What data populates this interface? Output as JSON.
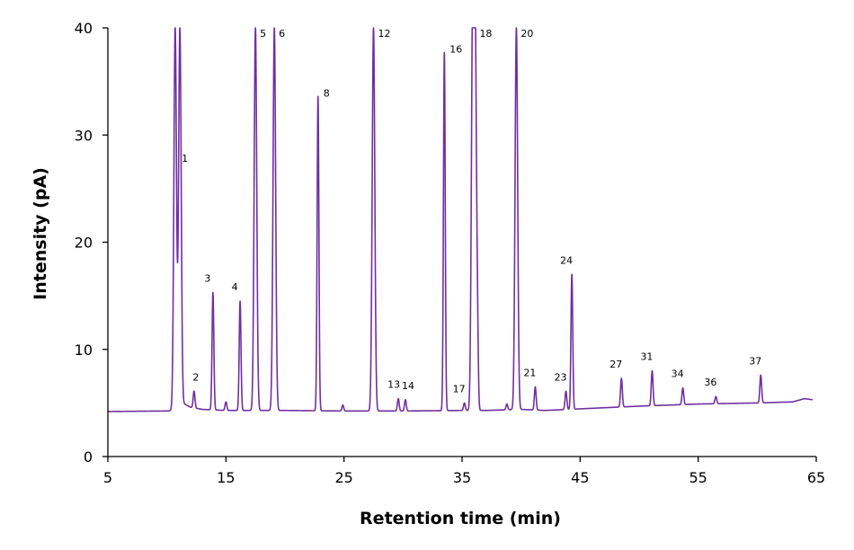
{
  "chart_data": {
    "type": "line",
    "xlabel": "Retention time (min)",
    "ylabel": "Intensity (pA)",
    "xlim": [
      5,
      65
    ],
    "ylim": [
      0,
      40
    ],
    "xticks": [
      5,
      15,
      25,
      35,
      45,
      55,
      65
    ],
    "yticks": [
      0,
      10,
      20,
      30,
      40
    ],
    "grid": false,
    "line_color": "#7030a0",
    "baseline": [
      [
        5,
        4.2
      ],
      [
        10,
        4.25
      ],
      [
        10.6,
        4.3
      ],
      [
        11.5,
        4.9
      ],
      [
        12,
        4.6
      ],
      [
        13,
        4.4
      ],
      [
        15,
        4.3
      ],
      [
        20,
        4.3
      ],
      [
        25,
        4.25
      ],
      [
        30,
        4.25
      ],
      [
        35,
        4.3
      ],
      [
        37,
        4.3
      ],
      [
        40,
        4.4
      ],
      [
        42,
        4.3
      ],
      [
        44,
        4.4
      ],
      [
        46,
        4.5
      ],
      [
        50,
        4.7
      ],
      [
        55,
        4.9
      ],
      [
        60,
        5.0
      ],
      [
        63,
        5.1
      ],
      [
        64,
        5.4
      ],
      [
        64.7,
        5.3
      ]
    ],
    "peaks": [
      {
        "x": 10.7,
        "y": 40,
        "label": ""
      },
      {
        "x": 11.1,
        "y": 40,
        "label": "1"
      },
      {
        "x": 12.3,
        "y": 6.1,
        "label": "2"
      },
      {
        "x": 13.9,
        "y": 15.3,
        "label": "3"
      },
      {
        "x": 15.0,
        "y": 5.1,
        "label": ""
      },
      {
        "x": 16.2,
        "y": 14.5,
        "label": "4"
      },
      {
        "x": 17.5,
        "y": 40,
        "label": "5"
      },
      {
        "x": 19.1,
        "y": 40,
        "label": "6"
      },
      {
        "x": 22.8,
        "y": 33.6,
        "label": "8"
      },
      {
        "x": 24.9,
        "y": 4.8,
        "label": ""
      },
      {
        "x": 27.5,
        "y": 40,
        "label": "12"
      },
      {
        "x": 29.6,
        "y": 5.4,
        "label": "13"
      },
      {
        "x": 30.2,
        "y": 5.3,
        "label": "14"
      },
      {
        "x": 33.5,
        "y": 37.7,
        "label": "16"
      },
      {
        "x": 35.2,
        "y": 5.0,
        "label": "17"
      },
      {
        "x": 35.9,
        "y": 40,
        "label": ""
      },
      {
        "x": 36.1,
        "y": 40,
        "label": "18"
      },
      {
        "x": 36.3,
        "y": 10.5,
        "label": ""
      },
      {
        "x": 38.8,
        "y": 4.9,
        "label": ""
      },
      {
        "x": 39.6,
        "y": 40,
        "label": "20"
      },
      {
        "x": 41.2,
        "y": 6.5,
        "label": "21"
      },
      {
        "x": 43.8,
        "y": 6.1,
        "label": "23"
      },
      {
        "x": 44.3,
        "y": 17.0,
        "label": "24"
      },
      {
        "x": 48.5,
        "y": 7.3,
        "label": "27"
      },
      {
        "x": 51.1,
        "y": 8.0,
        "label": "31"
      },
      {
        "x": 53.7,
        "y": 6.4,
        "label": "34"
      },
      {
        "x": 56.5,
        "y": 5.6,
        "label": "36"
      },
      {
        "x": 60.3,
        "y": 7.6,
        "label": "37"
      }
    ]
  }
}
